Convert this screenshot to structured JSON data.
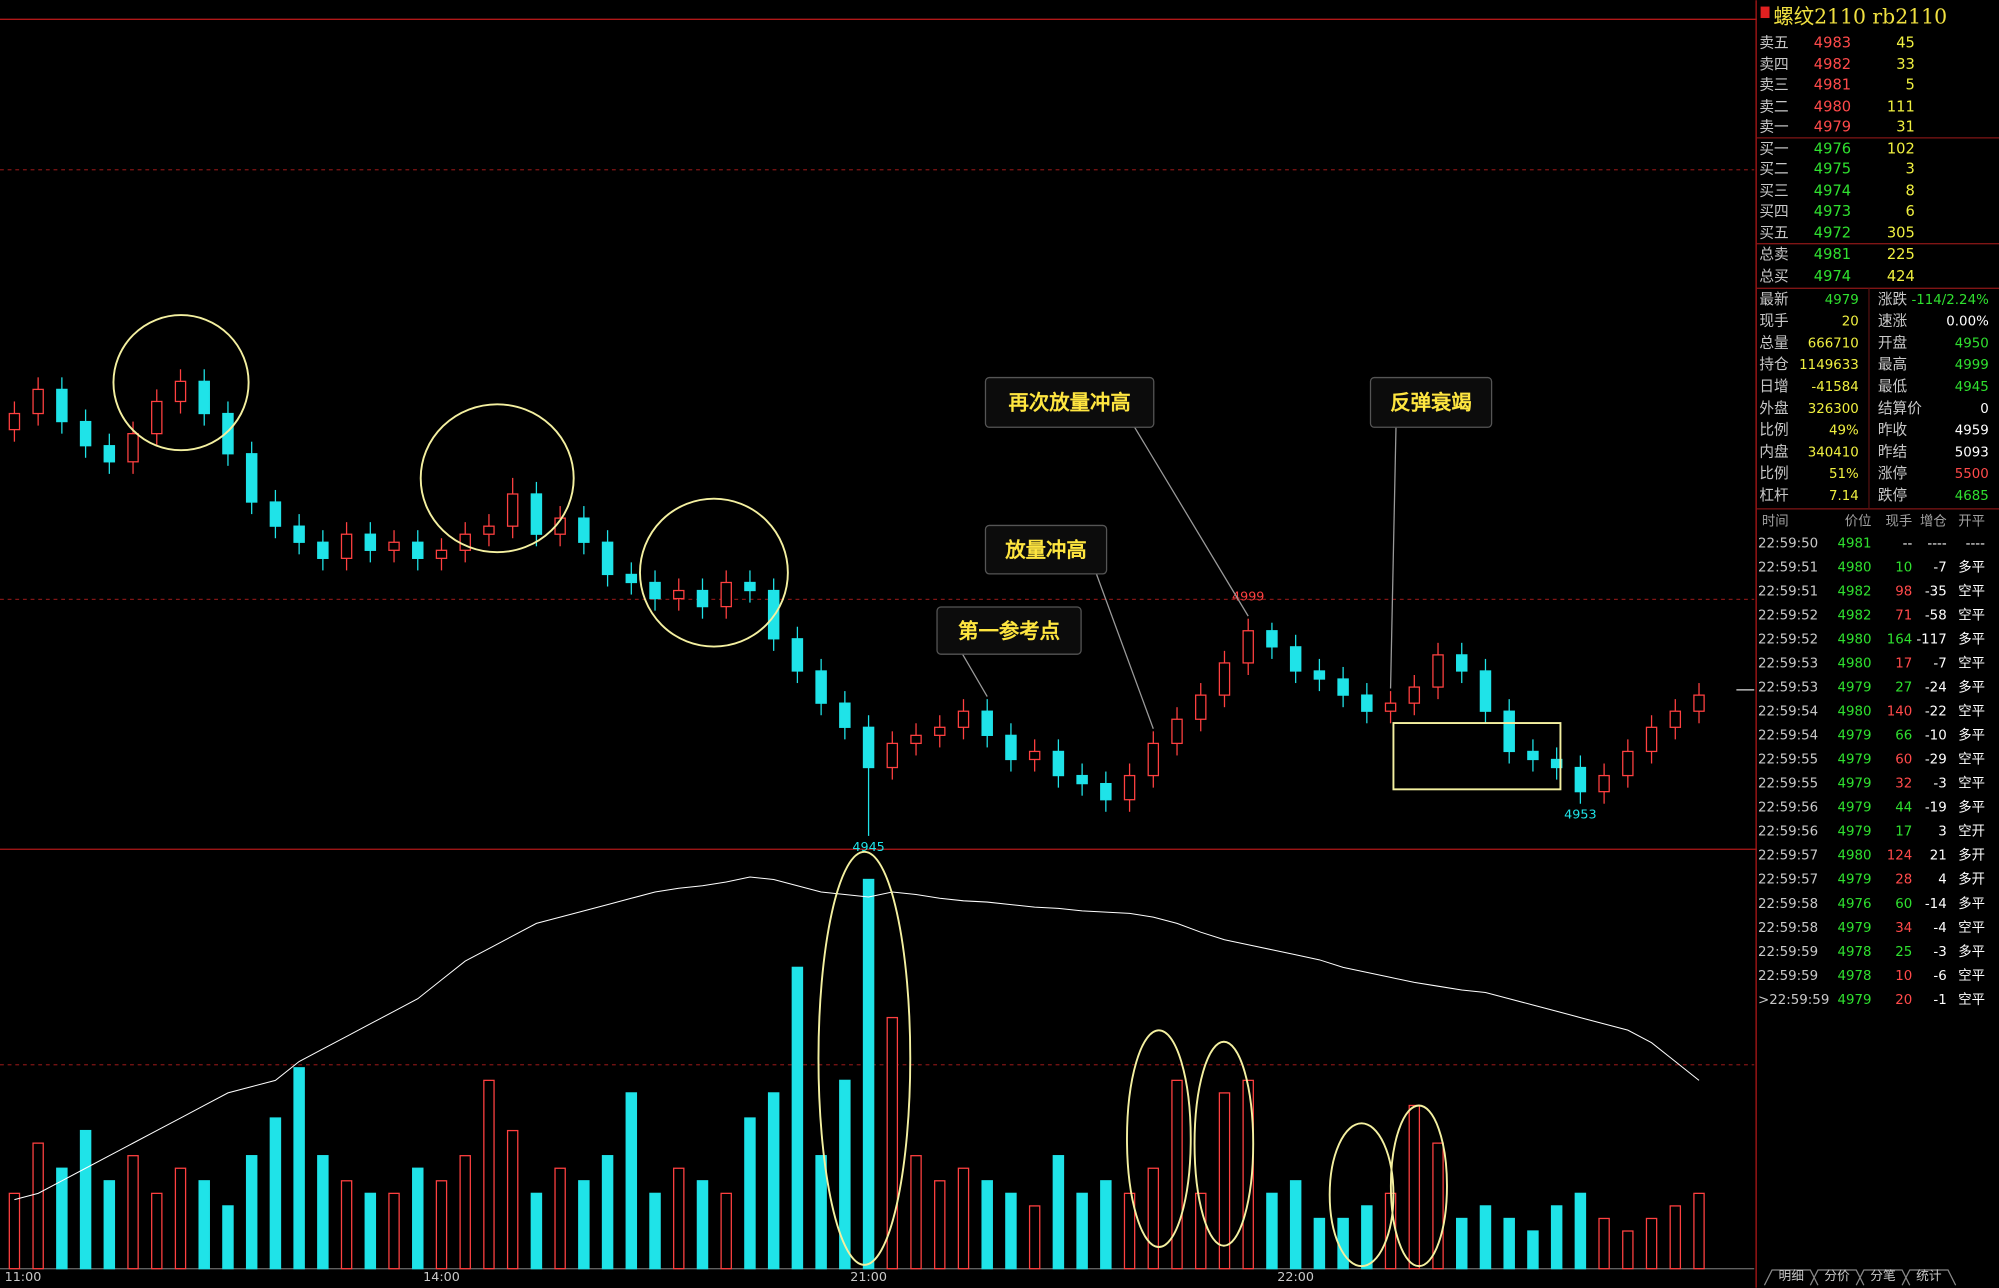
{
  "chart_data": {
    "type": "candlestick",
    "categories": [
      "11:00",
      null,
      null,
      null,
      null,
      null,
      null,
      null,
      null,
      null,
      null,
      null,
      null,
      null,
      null,
      null,
      null,
      null,
      "14:00",
      null,
      null,
      null,
      null,
      null,
      null,
      null,
      null,
      null,
      null,
      null,
      null,
      null,
      null,
      null,
      null,
      null,
      "21:00",
      null,
      null,
      null,
      null,
      null,
      null,
      null,
      null,
      null,
      null,
      null,
      null,
      null,
      null,
      null,
      null,
      null,
      "22:00",
      null,
      null,
      null,
      null,
      null,
      null,
      null,
      null,
      null,
      null,
      null,
      null,
      null,
      null,
      null,
      null,
      null
    ],
    "open": [
      5046,
      5050,
      5056,
      5048,
      5042,
      5038,
      5045,
      5053,
      5058,
      5050,
      5040,
      5028,
      5022,
      5018,
      5014,
      5020,
      5016,
      5018,
      5014,
      5016,
      5020,
      5022,
      5030,
      5020,
      5024,
      5018,
      5010,
      5008,
      5004,
      5006,
      5002,
      5008,
      5006,
      4994,
      4986,
      4978,
      4972,
      4962,
      4968,
      4970,
      4972,
      4976,
      4970,
      4964,
      4966,
      4960,
      4958,
      4954,
      4960,
      4968,
      4974,
      4980,
      4988,
      4996,
      4992,
      4986,
      4984,
      4980,
      4976,
      4978,
      4982,
      4990,
      4986,
      4976,
      4966,
      4964,
      4962,
      4956,
      4960,
      4966,
      4972,
      4976
    ],
    "high": [
      5053,
      5059,
      5059,
      5051,
      5045,
      5048,
      5056,
      5061,
      5061,
      5053,
      5043,
      5031,
      5025,
      5021,
      5023,
      5023,
      5021,
      5021,
      5019,
      5023,
      5025,
      5034,
      5033,
      5027,
      5027,
      5021,
      5013,
      5011,
      5009,
      5009,
      5011,
      5011,
      5009,
      4997,
      4989,
      4981,
      4975,
      4971,
      4973,
      4975,
      4979,
      4979,
      4973,
      4969,
      4969,
      4963,
      4961,
      4963,
      4971,
      4977,
      4983,
      4991,
      4999,
      4998,
      4995,
      4989,
      4987,
      4983,
      4981,
      4985,
      4993,
      4993,
      4989,
      4979,
      4969,
      4967,
      4965,
      4963,
      4969,
      4975,
      4979,
      4983
    ],
    "low": [
      5043,
      5047,
      5045,
      5039,
      5035,
      5035,
      5042,
      5050,
      5047,
      5037,
      5025,
      5019,
      5015,
      5011,
      5011,
      5013,
      5013,
      5011,
      5011,
      5013,
      5017,
      5019,
      5017,
      5017,
      5015,
      5007,
      5005,
      5001,
      5001,
      4999,
      4999,
      5003,
      4991,
      4983,
      4975,
      4969,
      4945,
      4959,
      4965,
      4967,
      4969,
      4967,
      4961,
      4961,
      4957,
      4955,
      4951,
      4951,
      4957,
      4965,
      4971,
      4977,
      4985,
      4989,
      4983,
      4981,
      4977,
      4973,
      4973,
      4975,
      4979,
      4983,
      4973,
      4963,
      4961,
      4959,
      4953,
      4953,
      4957,
      4963,
      4969,
      4973
    ],
    "close": [
      5050,
      5056,
      5048,
      5042,
      5038,
      5045,
      5053,
      5058,
      5050,
      5040,
      5028,
      5022,
      5018,
      5014,
      5020,
      5016,
      5018,
      5014,
      5016,
      5020,
      5022,
      5030,
      5020,
      5024,
      5018,
      5010,
      5008,
      5004,
      5006,
      5002,
      5008,
      5006,
      4994,
      4986,
      4978,
      4972,
      4962,
      4968,
      4970,
      4972,
      4976,
      4970,
      4964,
      4966,
      4960,
      4958,
      4954,
      4960,
      4968,
      4974,
      4980,
      4988,
      4996,
      4992,
      4986,
      4984,
      4980,
      4976,
      4978,
      4982,
      4990,
      4986,
      4976,
      4966,
      4964,
      4962,
      4956,
      4960,
      4966,
      4972,
      4976,
      4980
    ],
    "volume": [
      60,
      100,
      80,
      110,
      70,
      90,
      60,
      80,
      70,
      50,
      90,
      120,
      160,
      90,
      70,
      60,
      60,
      80,
      70,
      90,
      150,
      110,
      60,
      80,
      70,
      90,
      140,
      60,
      80,
      70,
      60,
      120,
      140,
      240,
      90,
      150,
      310,
      200,
      90,
      70,
      80,
      70,
      60,
      50,
      90,
      60,
      70,
      60,
      80,
      150,
      60,
      140,
      150,
      60,
      70,
      40,
      40,
      50,
      60,
      130,
      100,
      40,
      50,
      40,
      30,
      50,
      60,
      40,
      30,
      40,
      50,
      60
    ],
    "open_interest": [
      55,
      60,
      70,
      80,
      90,
      100,
      110,
      120,
      130,
      140,
      145,
      150,
      165,
      175,
      185,
      195,
      205,
      215,
      230,
      245,
      255,
      265,
      275,
      280,
      285,
      290,
      295,
      300,
      303,
      305,
      308,
      312,
      310,
      305,
      300,
      298,
      296,
      300,
      298,
      295,
      293,
      292,
      290,
      288,
      287,
      285,
      284,
      283,
      280,
      275,
      268,
      262,
      258,
      254,
      250,
      246,
      240,
      236,
      232,
      228,
      225,
      222,
      220,
      215,
      210,
      205,
      200,
      195,
      190,
      180,
      165,
      150
    ],
    "ylim": [
      4942,
      5148
    ],
    "volume_lim": [
      0,
      330
    ],
    "oi_lim": [
      0,
      330
    ],
    "up_color": "#ff4040",
    "down_color": "#1fe3e8",
    "oi_color": "#ffffff",
    "marked_low": [
      36,
      66
    ],
    "marked_high": [
      52
    ],
    "callouts": [
      {
        "text": "第一参考点",
        "index": 41
      },
      {
        "text": "放量冲高",
        "index": 48
      },
      {
        "text": "再次放量冲高",
        "index": 52
      },
      {
        "text": "反弹衰竭",
        "index": 58
      }
    ]
  },
  "header": {
    "symbol": "螺纹2110  rb2110"
  },
  "order_book": {
    "rows": [
      [
        "卖五",
        "4983",
        "45"
      ],
      [
        "卖四",
        "4982",
        "33"
      ],
      [
        "卖三",
        "4981",
        "5"
      ],
      [
        "卖二",
        "4980",
        "111"
      ],
      [
        "卖一",
        "4979",
        "31"
      ],
      [
        "买一",
        "4976",
        "102"
      ],
      [
        "买二",
        "4975",
        "3"
      ],
      [
        "买三",
        "4974",
        "8"
      ],
      [
        "买四",
        "4973",
        "6"
      ],
      [
        "买五",
        "4972",
        "305"
      ],
      [
        "总卖",
        "4981",
        "225"
      ],
      [
        "总买",
        "4974",
        "424"
      ]
    ],
    "price_colors": [
      "#ff4a4a",
      "#ff4a4a",
      "#ff4a4a",
      "#ff4a4a",
      "#ff4a4a",
      "#2fe02f",
      "#2fe02f",
      "#2fe02f",
      "#2fe02f",
      "#2fe02f",
      "#2fe02f",
      "#2fe02f"
    ]
  },
  "quote": {
    "rows": [
      [
        "最新",
        "4979",
        "涨跌",
        "-114/2.24%"
      ],
      [
        "现手",
        "20",
        "速涨",
        "0.00%"
      ],
      [
        "总量",
        "666710",
        "开盘",
        "4950"
      ],
      [
        "持仓",
        "1149633",
        "最高",
        "4999"
      ],
      [
        "日增",
        "-41584",
        "最低",
        "4945"
      ],
      [
        "外盘",
        "326300",
        "结算价",
        "0"
      ],
      [
        "比例",
        "49%",
        "昨收",
        "4959"
      ],
      [
        "内盘",
        "340410",
        "昨结",
        "5093"
      ],
      [
        "比例",
        "51%",
        "涨停",
        "5500"
      ],
      [
        "杠杆",
        "7.14",
        "跌停",
        "4685"
      ]
    ],
    "colors": [
      [
        "#2fe02f",
        "#2fe02f"
      ],
      [
        "#f0f040",
        "#ffffff"
      ],
      [
        "#f0f040",
        "#2fe02f"
      ],
      [
        "#f0f040",
        "#2fe02f"
      ],
      [
        "#f0f040",
        "#2fe02f"
      ],
      [
        "#f0f040",
        "#ffffff"
      ],
      [
        "#f0f040",
        "#ffffff"
      ],
      [
        "#f0f040",
        "#ffffff"
      ],
      [
        "#f0f040",
        "#ff4a4a"
      ],
      [
        "#f0f040",
        "#2fe02f"
      ]
    ]
  },
  "ticks": {
    "headers": [
      "时间",
      "价位",
      "现手",
      "增仓",
      "开平"
    ],
    "rows": [
      [
        "22:59:50",
        "4981",
        "--",
        "----",
        "----"
      ],
      [
        "22:59:51",
        "4980",
        "10",
        "-7",
        "多平"
      ],
      [
        "22:59:51",
        "4982",
        "98",
        "-35",
        "空平"
      ],
      [
        "22:59:52",
        "4982",
        "71",
        "-58",
        "空平"
      ],
      [
        "22:59:52",
        "4980",
        "164",
        "-117",
        "多平"
      ],
      [
        "22:59:53",
        "4980",
        "17",
        "-7",
        "空平"
      ],
      [
        "22:59:53",
        "4979",
        "27",
        "-24",
        "多平"
      ],
      [
        "22:59:54",
        "4980",
        "140",
        "-22",
        "空平"
      ],
      [
        "22:59:54",
        "4979",
        "66",
        "-10",
        "多平"
      ],
      [
        "22:59:55",
        "4979",
        "60",
        "-29",
        "空平"
      ],
      [
        "22:59:55",
        "4979",
        "32",
        "-3",
        "空平"
      ],
      [
        "22:59:56",
        "4979",
        "44",
        "-19",
        "多平"
      ],
      [
        "22:59:56",
        "4979",
        "17",
        "3",
        "空开"
      ],
      [
        "22:59:57",
        "4980",
        "124",
        "21",
        "多开"
      ],
      [
        "22:59:57",
        "4979",
        "28",
        "4",
        "多开"
      ],
      [
        "22:59:58",
        "4976",
        "60",
        "-14",
        "多平"
      ],
      [
        "22:59:58",
        "4979",
        "34",
        "-4",
        "空平"
      ],
      [
        "22:59:59",
        "4978",
        "25",
        "-3",
        "多平"
      ],
      [
        "22:59:59",
        "4978",
        "10",
        "-6",
        "空平"
      ],
      [
        ">22:59:59",
        "4979",
        "20",
        "-1",
        "空平"
      ]
    ],
    "vol_colors": [
      "#ffffff",
      "#2fe02f",
      "#ff4a4a",
      "#ff4a4a",
      "#2fe02f",
      "#ff4a4a",
      "#2fe02f",
      "#ff4a4a",
      "#2fe02f",
      "#ff4a4a",
      "#ff4a4a",
      "#2fe02f",
      "#2fe02f",
      "#ff4a4a",
      "#ff4a4a",
      "#2fe02f",
      "#ff4a4a",
      "#2fe02f",
      "#ff4a4a",
      "#ff4a4a"
    ]
  },
  "tabs": [
    "明细",
    "分价",
    "分笔",
    "统计"
  ]
}
